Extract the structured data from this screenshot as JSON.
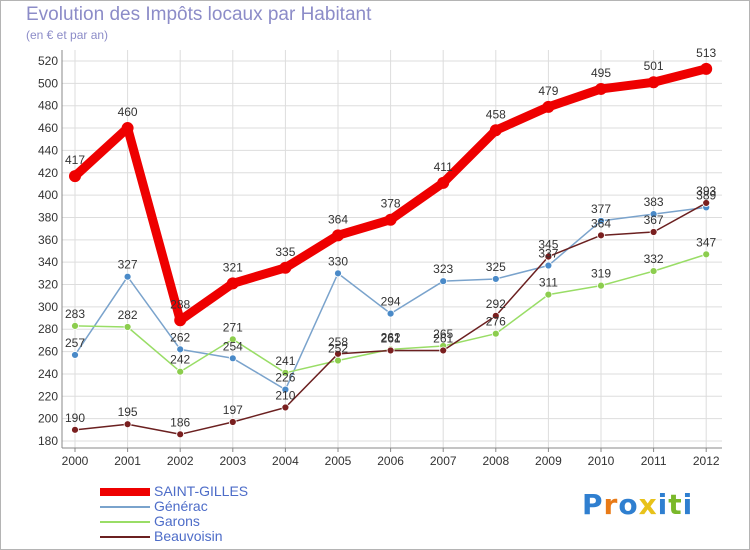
{
  "title": "Evolution des Impôts locaux par Habitant",
  "subtitle": "(en € et par an)",
  "brand": {
    "letters": [
      "P",
      "r",
      "o",
      "x",
      "i",
      "t",
      "i"
    ],
    "colors": [
      "#2f7fd0",
      "#e87a17",
      "#2f7fd0",
      "#e8c21a",
      "#2f7fd0",
      "#7ab82a",
      "#2f7fd0"
    ]
  },
  "chart_data": {
    "type": "line",
    "title": "Evolution des Impôts locaux par Habitant",
    "subtitle": "(en € et par an)",
    "x": [
      "2000",
      "2001",
      "2002",
      "2003",
      "2004",
      "2005",
      "2006",
      "2007",
      "2008",
      "2009",
      "2010",
      "2011",
      "2012"
    ],
    "ylim": [
      180,
      520
    ],
    "yticks": [
      "180",
      "200",
      "220",
      "240",
      "260",
      "280",
      "300",
      "320",
      "340",
      "360",
      "380",
      "400",
      "420",
      "440",
      "460",
      "480",
      "500",
      "520"
    ],
    "grid": true,
    "series": [
      {
        "name": "SAINT-GILLES",
        "color": "#ee0000",
        "values": [
          417,
          460,
          288,
          321,
          335,
          364,
          378,
          411,
          458,
          479,
          495,
          501,
          513
        ],
        "labels": [
          "417",
          "460",
          "288",
          "321",
          "335",
          "364",
          "378",
          "411",
          "458",
          "479",
          "495",
          "501",
          "513"
        ]
      },
      {
        "name": "Générac",
        "color": "#7aa3cc",
        "values": [
          257,
          327,
          262,
          254,
          226,
          330,
          294,
          323,
          325,
          337,
          377,
          383,
          389
        ],
        "labels": [
          "257",
          "327",
          "262",
          "254",
          "226",
          "330",
          "294",
          "323",
          "325",
          "337",
          "377",
          "383",
          "389"
        ]
      },
      {
        "name": "Garons",
        "color": "#99dd66",
        "values": [
          283,
          282,
          242,
          271,
          241,
          252,
          262,
          265,
          276,
          311,
          319,
          332,
          347
        ],
        "labels": [
          "283",
          "282",
          "242",
          "271",
          "241",
          "252",
          "262",
          "265",
          "276",
          "311",
          "319",
          "332",
          "347"
        ]
      },
      {
        "name": "Beauvoisin",
        "color": "#6b2020",
        "values": [
          190,
          195,
          186,
          197,
          210,
          258,
          261,
          261,
          292,
          345,
          364,
          367,
          393
        ],
        "labels": [
          "190",
          "195",
          "186",
          "197",
          "210",
          "258",
          "261",
          "261",
          "292",
          "345",
          "364",
          "367",
          "393"
        ]
      }
    ]
  }
}
